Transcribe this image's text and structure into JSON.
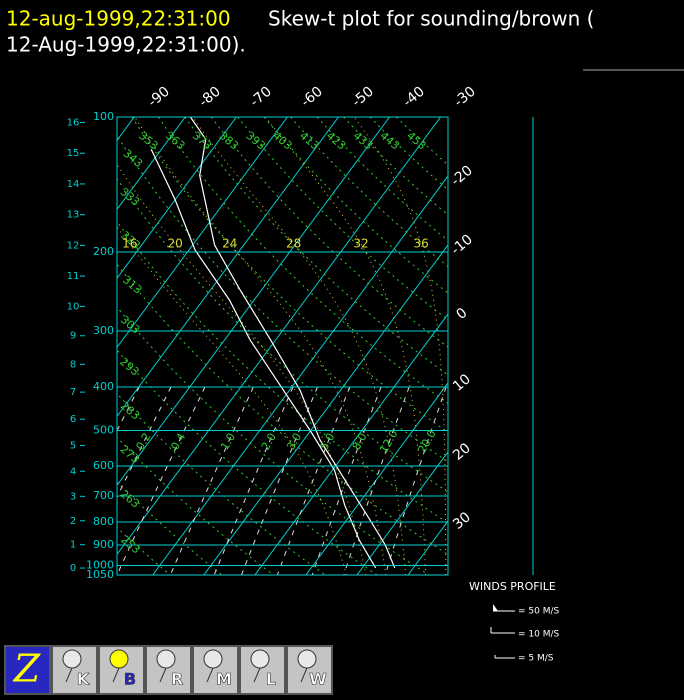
{
  "header": {
    "date": "12-aug-1999,22:31:00",
    "title": "Skew-t plot for sounding/brown (",
    "date2": "12-Aug-1999,22:31:00)."
  },
  "chart_data": {
    "type": "skewt",
    "ylim": [
      1050,
      100
    ],
    "log_y": true,
    "yticks": [
      100,
      200,
      300,
      400,
      500,
      600,
      700,
      800,
      900,
      1000,
      1050
    ],
    "grid_levels": [
      200,
      300,
      400,
      500,
      600,
      700,
      800,
      900,
      1000
    ],
    "height_ticks_km": [
      0,
      1,
      2,
      3,
      4,
      5,
      6,
      7,
      8,
      9,
      10,
      11,
      12,
      13,
      14,
      15,
      16
    ],
    "isotherm_top_labels": [
      -90,
      -80,
      -70,
      -60,
      -50,
      -40,
      -30
    ],
    "isotherm_right_labels": [
      -20,
      -10,
      0,
      10,
      20,
      30
    ],
    "dry_adiabats": [
      243,
      253,
      263,
      273,
      283,
      293,
      303,
      313,
      323,
      333,
      343,
      353,
      363,
      373,
      383,
      393,
      403,
      413,
      423,
      433,
      443,
      453
    ],
    "mixing_ratios": [
      0.1,
      0.2,
      0.4,
      1.0,
      2.0,
      3.0,
      5.0,
      8.0,
      12.0,
      20.0
    ],
    "mixing_ratio_labels": [
      "0.1",
      "0.2",
      "0.4",
      "1.0",
      "2.0",
      "3.0",
      "5.0",
      "8.0",
      "12.0",
      "20.0"
    ],
    "moist_adiabats": [
      16,
      20,
      24,
      28,
      32,
      36
    ],
    "series": [
      {
        "color": "#ffffff",
        "pressure": [
          1013,
          900,
          792,
          645,
          525,
          406,
          314,
          243,
          193,
          135,
          112,
          100
        ],
        "values": [
          26.4,
          21.2,
          14.6,
          3.9,
          -6.8,
          -18,
          -31,
          -44.2,
          -55.7,
          -68.7,
          -72.8,
          -79
        ]
      },
      {
        "color": "#ffffff",
        "pressure": [
          1012,
          880,
          734,
          613,
          500,
          396,
          314,
          256,
          198,
          153,
          118
        ],
        "values": [
          22.6,
          15.5,
          7.5,
          0.4,
          -10.1,
          -22.6,
          -35,
          -44.8,
          -58.8,
          -70,
          -82
        ]
      }
    ],
    "winds_legend": {
      "title": "WINDS PROFILE",
      "items": [
        "= 50 M/S",
        "= 10 M/S",
        "= 5 M/S"
      ]
    }
  },
  "toolbar": [
    "Z",
    "K",
    "B",
    "R",
    "M",
    "L",
    "W"
  ]
}
